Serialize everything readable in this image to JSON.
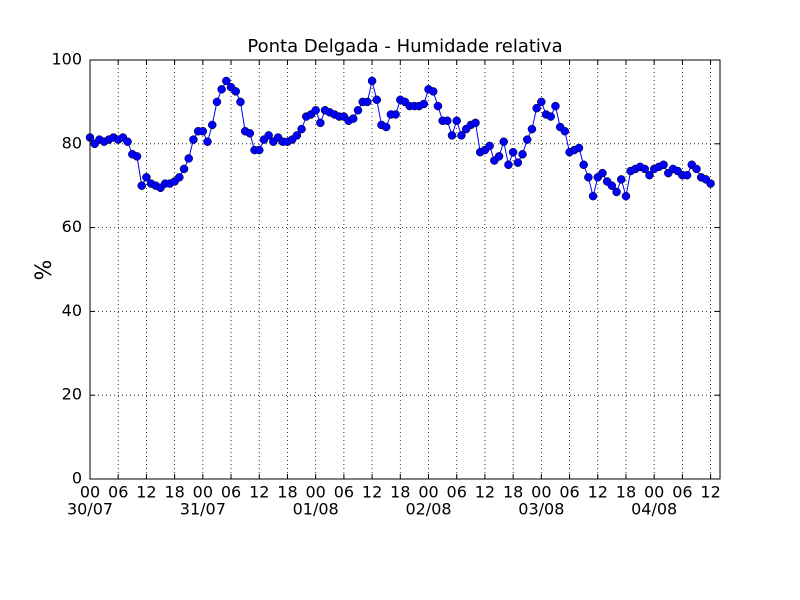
{
  "chart_data": {
    "type": "line",
    "title": "Ponta Delgada - Humidade relativa",
    "y_label": "%",
    "x": [
      0,
      1,
      2,
      3,
      4,
      5,
      6,
      7,
      8,
      9,
      10,
      11,
      12,
      13,
      14,
      15,
      16,
      17,
      18,
      19,
      20,
      21,
      22,
      23,
      24,
      25,
      26,
      27,
      28,
      29,
      30,
      31,
      32,
      33,
      34,
      35,
      36,
      37,
      38,
      39,
      40,
      41,
      42,
      43,
      44,
      45,
      46,
      47,
      48,
      49,
      50,
      51,
      52,
      53,
      54,
      55,
      56,
      57,
      58,
      59,
      60,
      61,
      62,
      63,
      64,
      65,
      66,
      67,
      68,
      69,
      70,
      71,
      72,
      73,
      74,
      75,
      76,
      77,
      78,
      79,
      80,
      81,
      82,
      83,
      84,
      85,
      86,
      87,
      88,
      89,
      90,
      91,
      92,
      93,
      94,
      95,
      96,
      97,
      98,
      99,
      100,
      101,
      102,
      103,
      104,
      105,
      106,
      107,
      108,
      109,
      110,
      111,
      112,
      113,
      114,
      115,
      116,
      117,
      118,
      119,
      120,
      121,
      122,
      123,
      124,
      125,
      126,
      127,
      128,
      129,
      130,
      131,
      132
    ],
    "series": [
      {
        "name": "Humidade relativa",
        "color": "#0000ff",
        "values": [
          81.5,
          80,
          81,
          80.5,
          81,
          81.5,
          81,
          81.5,
          80.5,
          77.5,
          77,
          70,
          72,
          70.5,
          70,
          69.5,
          70.5,
          70.5,
          71,
          72,
          74,
          76.5,
          81,
          83,
          83,
          80.5,
          84.5,
          90,
          93,
          95,
          93.5,
          92.5,
          90,
          83,
          82.5,
          78.5,
          78.5,
          81,
          82,
          80.5,
          81.5,
          80.5,
          80.5,
          81,
          82,
          83.5,
          86.5,
          87,
          88,
          85,
          88,
          87.5,
          87,
          86.5,
          86.5,
          85.5,
          86,
          88,
          90,
          90,
          95,
          90.5,
          84.5,
          84,
          87,
          87,
          90.5,
          90,
          89,
          89,
          89,
          89.5,
          93,
          92.5,
          89,
          85.5,
          85.5,
          82,
          85.5,
          82,
          83.5,
          84.5,
          85,
          78,
          78.5,
          79.5,
          76,
          77,
          80.5,
          75,
          78,
          75.5,
          77.5,
          81,
          83.5,
          88.5,
          90,
          87,
          86.5,
          89,
          84,
          83,
          78,
          78.5,
          79,
          75,
          72,
          67.5,
          72,
          73,
          71,
          70,
          68.5,
          71.5,
          67.5,
          73.5,
          74,
          74.5,
          74,
          72.5,
          74,
          74.5,
          75,
          73,
          74,
          73.5,
          72.5,
          72.5,
          75,
          74,
          72,
          71.5,
          70.5
        ]
      }
    ],
    "xlim": [
      0,
      134
    ],
    "ylim": [
      0,
      100
    ],
    "yticks": [
      0,
      20,
      40,
      60,
      80,
      100
    ],
    "xticks": [
      {
        "value": 0,
        "label": "00"
      },
      {
        "value": 6,
        "label": "06"
      },
      {
        "value": 12,
        "label": "12"
      },
      {
        "value": 18,
        "label": "18"
      },
      {
        "value": 24,
        "label": "00"
      },
      {
        "value": 30,
        "label": "06"
      },
      {
        "value": 36,
        "label": "12"
      },
      {
        "value": 42,
        "label": "18"
      },
      {
        "value": 48,
        "label": "00"
      },
      {
        "value": 54,
        "label": "06"
      },
      {
        "value": 60,
        "label": "12"
      },
      {
        "value": 66,
        "label": "18"
      },
      {
        "value": 72,
        "label": "00"
      },
      {
        "value": 78,
        "label": "06"
      },
      {
        "value": 84,
        "label": "12"
      },
      {
        "value": 90,
        "label": "18"
      },
      {
        "value": 96,
        "label": "00"
      },
      {
        "value": 102,
        "label": "06"
      },
      {
        "value": 108,
        "label": "12"
      },
      {
        "value": 114,
        "label": "18"
      },
      {
        "value": 120,
        "label": "00"
      },
      {
        "value": 126,
        "label": "06"
      },
      {
        "value": 132,
        "label": "12"
      }
    ],
    "xtick_dates": [
      {
        "value": 0,
        "label": "30/07"
      },
      {
        "value": 24,
        "label": "31/07"
      },
      {
        "value": 48,
        "label": "01/08"
      },
      {
        "value": 72,
        "label": "02/08"
      },
      {
        "value": 96,
        "label": "03/08"
      },
      {
        "value": 120,
        "label": "04/08"
      }
    ],
    "grid": true
  }
}
